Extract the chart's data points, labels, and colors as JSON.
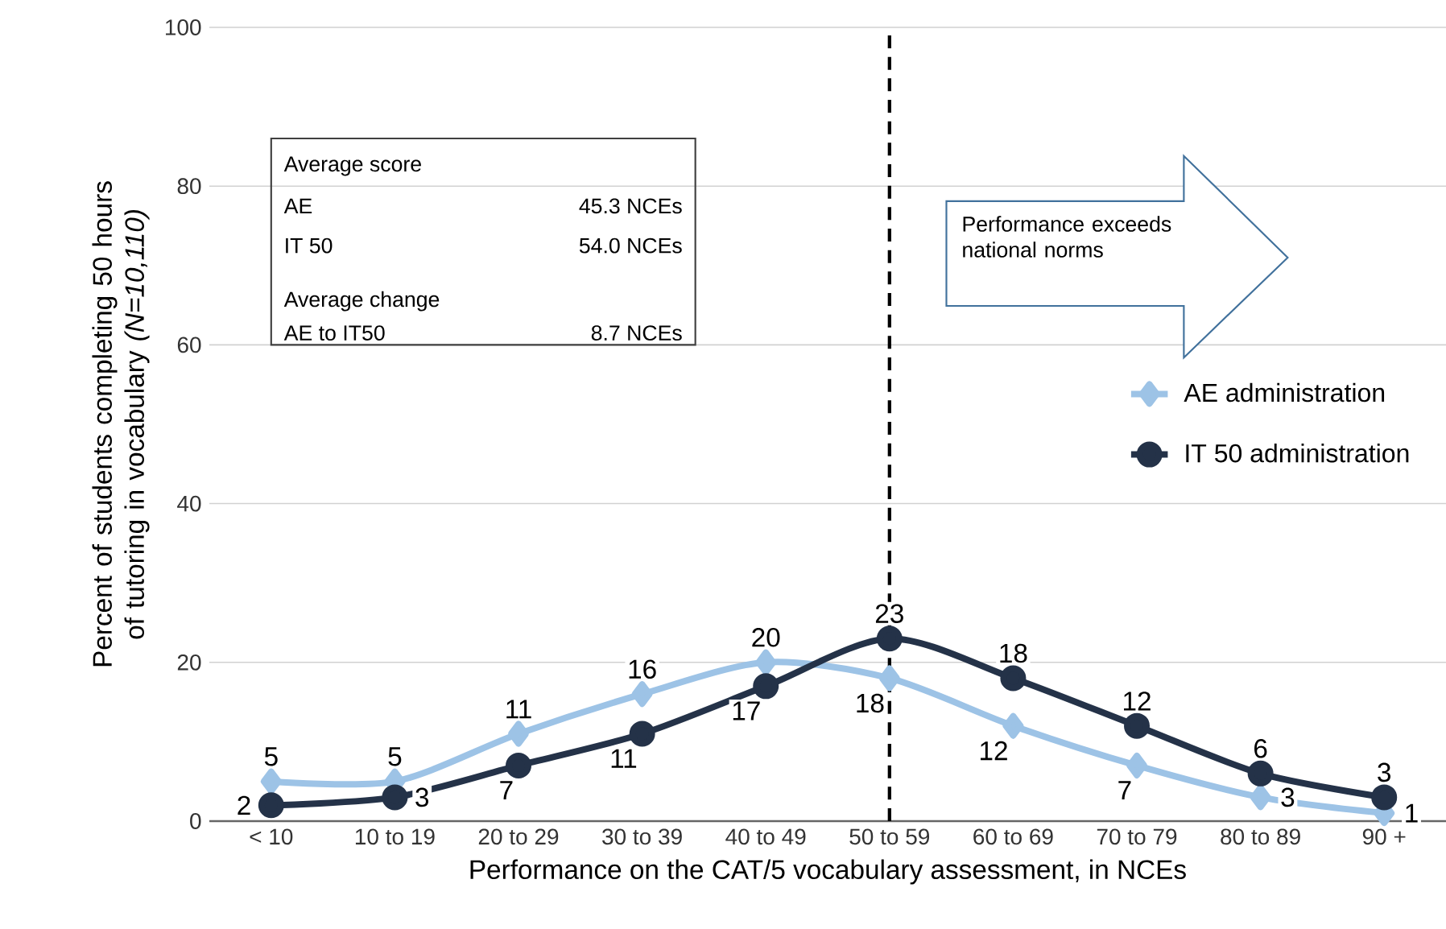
{
  "chart_data": {
    "type": "line",
    "xlabel": "Performance on the CAT/5 vocabulary assessment, in NCEs",
    "ylabel": "Percent of students completing 50 hours of tutoring in vocabulary *(N=10,110)*",
    "categories": [
      "< 10",
      "10 to 19",
      "20 to 29",
      "30 to 39",
      "40 to 49",
      "50 to 59",
      "60 to 69",
      "70 to 79",
      "80 to 89",
      "90 +"
    ],
    "series": [
      {
        "name": "AE administration",
        "color": "#9dc3e6",
        "marker": "diamond",
        "values": [
          5,
          5,
          11,
          16,
          20,
          18,
          12,
          7,
          3,
          1
        ]
      },
      {
        "name": "IT 50 administration",
        "color": "#243248",
        "marker": "circle",
        "values": [
          2,
          3,
          7,
          11,
          17,
          23,
          18,
          12,
          6,
          3
        ]
      }
    ],
    "ylim": [
      0,
      100
    ],
    "yticks": [
      0,
      20,
      40,
      60,
      80,
      100
    ],
    "grid": "y",
    "legend": "right",
    "data_labels": true,
    "line_style": "solid",
    "ref_lines": [
      {
        "axis": "x",
        "value": "50 to 59",
        "color": "#000000",
        "line_style": "dashed"
      }
    ],
    "annotations": [
      "Average score",
      "AE",
      "45.3 NCEs",
      "IT 50",
      "54.0 NCEs",
      "Average change",
      "AE to IT50",
      "8.7 NCEs",
      "Performance exceeds national norms"
    ]
  }
}
